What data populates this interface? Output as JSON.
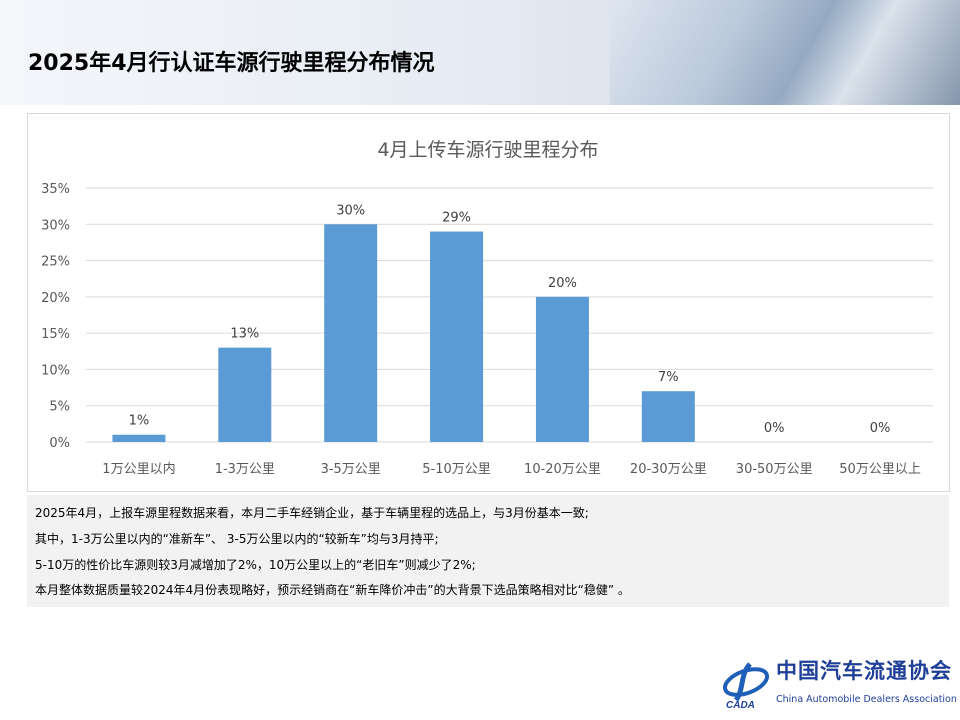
{
  "slide": {
    "title": "2025年4月行认证车源行驶里程分布情况"
  },
  "chart_data": {
    "type": "bar",
    "title": "4月上传车源行驶里程分布",
    "categories": [
      "1万公里以内",
      "1-3万公里",
      "3-5万公里",
      "5-10万公里",
      "10-20万公里",
      "20-30万公里",
      "30-50万公里",
      "50万公里以上"
    ],
    "values": [
      1,
      13,
      30,
      29,
      20,
      7,
      0,
      0
    ],
    "data_labels": [
      "1%",
      "13%",
      "30%",
      "29%",
      "20%",
      "7%",
      "0%",
      "0%"
    ],
    "ylim": [
      0,
      35
    ],
    "yticks": [
      "0%",
      "5%",
      "10%",
      "15%",
      "20%",
      "25%",
      "30%",
      "35%"
    ],
    "grid": true,
    "bar_color": "#5b9bd5"
  },
  "notes": [
    "2025年4月，上报车源里程数据来看，本月二手车经销企业，基于车辆里程的选品上，与3月份基本一致;",
    "其中，1-3万公里以内的“准新车”、 3-5万公里以内的“较新车”均与3月持平;",
    "5-10万的性价比车源则较3月减增加了2%，10万公里以上的“老旧车”则减少了2%;",
    "本月整体数据质量较2024年4月份表现略好，预示经销商在“新车降价冲击”的大背景下选品策略相对比“稳健” 。"
  ],
  "logo": {
    "cn": "中国汽车流通协会",
    "en": "China Automobile Dealers Association",
    "mark": "CADA"
  }
}
